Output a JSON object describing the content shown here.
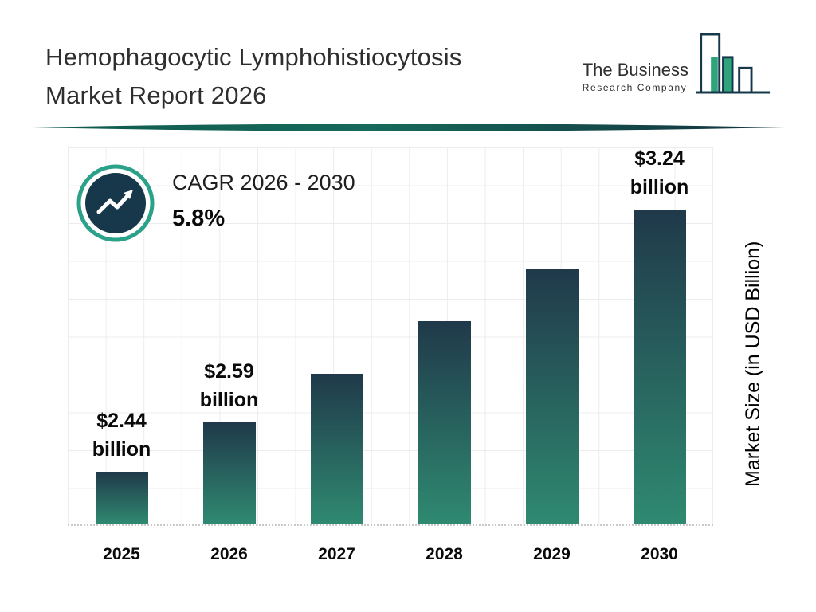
{
  "header": {
    "title_line1": "Hemophagocytic Lymphohistiocytosis",
    "title_line2": "Market Report 2026"
  },
  "logo": {
    "name": "The Business",
    "subname": "Research Company"
  },
  "cagr": {
    "label": "CAGR 2026 - 2030",
    "value": "5.8%"
  },
  "chart_data": {
    "type": "bar",
    "title": "Hemophagocytic Lymphohistiocytosis Market Report 2026",
    "categories": [
      "2025",
      "2026",
      "2027",
      "2028",
      "2029",
      "2030"
    ],
    "values": [
      2.44,
      2.59,
      2.74,
      2.9,
      3.06,
      3.24
    ],
    "unit": "USD Billion",
    "xlabel": "",
    "ylabel": "Market Size (in USD Billion)",
    "ylim": [
      2.28,
      3.3
    ],
    "grid": true,
    "legend": "none",
    "value_labels": [
      {
        "line1": "$2.44",
        "line2": "billion"
      },
      {
        "line1": "$2.59",
        "line2": "billion"
      },
      null,
      null,
      null,
      {
        "line1": "$3.24",
        "line2": "billion"
      }
    ],
    "colors": {
      "bar_top": "#20394a",
      "bar_bottom": "#2f8a71",
      "grid": "#ececec"
    }
  },
  "colors": {
    "accent_teal": "#2f8a71",
    "navy": "#16384a",
    "ring_teal": "#2aa188",
    "logo_green": "#2fa37c"
  }
}
